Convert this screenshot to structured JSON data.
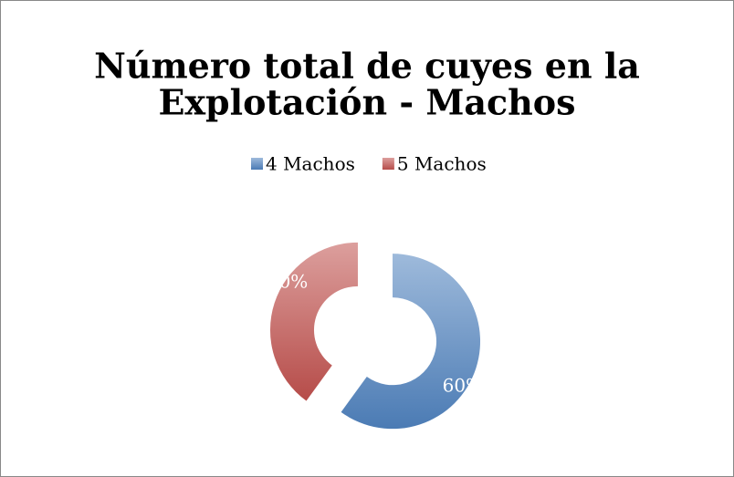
{
  "chart_data": {
    "type": "donut",
    "title": "Número total de cuyes en la Explotación - Machos",
    "title_lines": [
      "Número total de cuyes en la",
      "Explotación - Machos"
    ],
    "categories": [
      "4 Machos",
      "5 Machos"
    ],
    "values": [
      60,
      40
    ],
    "value_labels": [
      "60%",
      "40%"
    ],
    "colors": [
      "#4f81bd",
      "#c0504d"
    ],
    "legend": "top",
    "exploded": true
  }
}
